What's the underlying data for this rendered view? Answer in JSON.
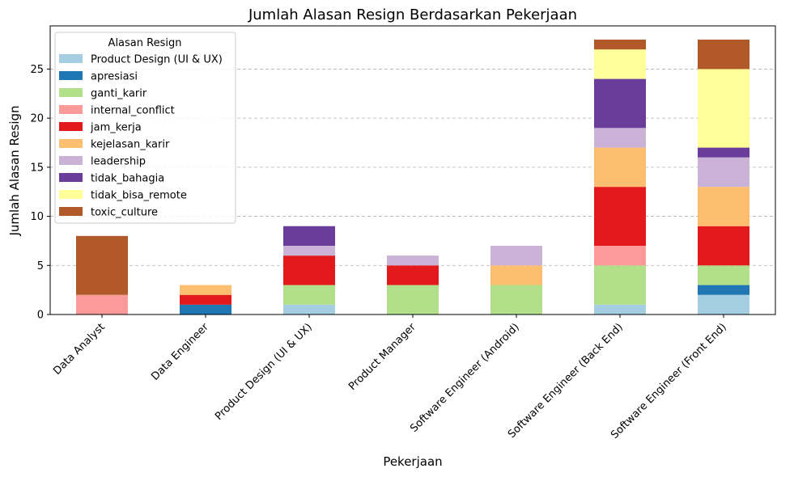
{
  "chart_data": {
    "type": "bar",
    "stacked": true,
    "title": "Jumlah Alasan Resign Berdasarkan Pekerjaan",
    "xlabel": "Pekerjaan",
    "ylabel": "Jumlah Alasan Resign",
    "ylim": [
      0,
      29.4
    ],
    "yticks": [
      0,
      5,
      10,
      15,
      20,
      25
    ],
    "grid": "y-dashed",
    "legend_title": "Alasan Resign",
    "legend_position": "top-left",
    "categories": [
      "Data Analyst",
      "Data Engineer",
      "Product Design (UI & UX)",
      "Product Manager",
      "Software Engineer (Android)",
      "Software Engineer (Back End)",
      "Software Engineer (Front End)"
    ],
    "series": [
      {
        "name": "Product Design (UI & UX)",
        "color": "#a6cee3",
        "values": [
          0,
          0,
          1,
          0,
          0,
          1,
          2
        ]
      },
      {
        "name": "apresiasi",
        "color": "#1f78b4",
        "values": [
          0,
          1,
          0,
          0,
          0,
          0,
          1
        ]
      },
      {
        "name": "ganti_karir",
        "color": "#b2df8a",
        "values": [
          0,
          0,
          2,
          3,
          3,
          4,
          2
        ]
      },
      {
        "name": "internal_conflict",
        "color": "#fb9a99",
        "values": [
          2,
          0,
          0,
          0,
          0,
          2,
          0
        ]
      },
      {
        "name": "jam_kerja",
        "color": "#e31a1c",
        "values": [
          0,
          1,
          3,
          2,
          0,
          6,
          4
        ]
      },
      {
        "name": "kejelasan_karir",
        "color": "#fdbf6f",
        "values": [
          0,
          1,
          0,
          0,
          2,
          4,
          4
        ]
      },
      {
        "name": "leadership",
        "color": "#cab2d6",
        "values": [
          0,
          0,
          1,
          1,
          2,
          2,
          3
        ]
      },
      {
        "name": "tidak_bahagia",
        "color": "#6a3d9a",
        "values": [
          0,
          0,
          2,
          0,
          0,
          5,
          1
        ]
      },
      {
        "name": "tidak_bisa_remote",
        "color": "#ffff99",
        "values": [
          0,
          0,
          0,
          0,
          0,
          3,
          8
        ]
      },
      {
        "name": "toxic_culture",
        "color": "#b15928",
        "values": [
          6,
          0,
          0,
          0,
          0,
          1,
          3
        ]
      }
    ]
  }
}
